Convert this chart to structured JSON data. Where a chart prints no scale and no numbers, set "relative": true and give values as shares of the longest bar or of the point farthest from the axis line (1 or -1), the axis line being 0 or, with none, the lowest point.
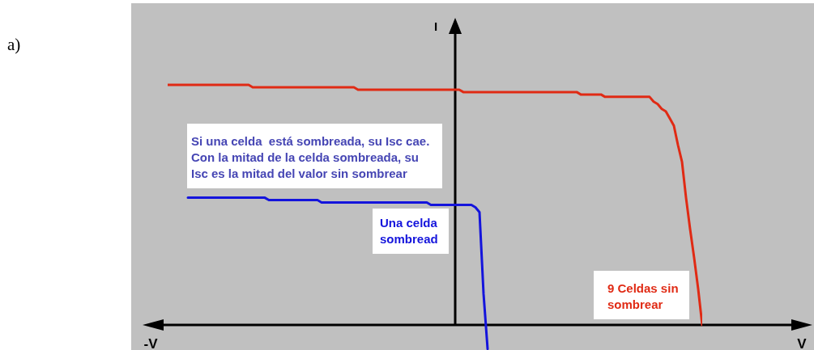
{
  "chart_data": {
    "type": "line",
    "relative": true,
    "ylabel": "I",
    "marker": "none",
    "line_style": "solid",
    "annotations": [
      "a)",
      "Si una celda  está sombreada, su Isc cae. Con la mitad de la celda sombreada, su Isc es la mitad del valor sin sombrear",
      "-V",
      "V"
    ],
    "categories": [
      null,
      null,
      null,
      null,
      null,
      null,
      null,
      null,
      null,
      null,
      null,
      null,
      null,
      null,
      null,
      null,
      null,
      null,
      null,
      null,
      null,
      null,
      null,
      null,
      null,
      null,
      null,
      null,
      null,
      null,
      null,
      null,
      null,
      null,
      null,
      null,
      null,
      null,
      null,
      null,
      null,
      null,
      null,
      null,
      null,
      null,
      null,
      null,
      null,
      null,
      null,
      null,
      null,
      null,
      null,
      null,
      null,
      null,
      null,
      null,
      null,
      null,
      null,
      null,
      null,
      null,
      null,
      null,
      null,
      null,
      null,
      null,
      null,
      null,
      null,
      null,
      null,
      null,
      null,
      null,
      null,
      null,
      null,
      null,
      null,
      null,
      null,
      null,
      null,
      null,
      null,
      null,
      null,
      null,
      null,
      null,
      null,
      null,
      null,
      null,
      null,
      null,
      null,
      null,
      null,
      null,
      null,
      null,
      null,
      null,
      null,
      null,
      null,
      null,
      null,
      null,
      null,
      null,
      null,
      null,
      null,
      null,
      null,
      null,
      null,
      null,
      null,
      null,
      null,
      null,
      null,
      null,
      null
    ],
    "series": [
      {
        "name": "9 Celdas sin sombrear",
        "color": "#e02a14",
        "values": [
          1,
          1,
          1,
          1,
          1,
          1,
          1,
          1,
          1,
          1,
          1,
          1,
          1,
          1,
          1,
          1,
          1,
          1,
          1,
          1,
          1,
          0.99,
          0.99,
          0.99,
          0.99,
          0.99,
          0.99,
          0.99,
          0.99,
          0.99,
          0.99,
          0.99,
          0.99,
          0.99,
          0.99,
          0.99,
          0.99,
          0.99,
          0.99,
          0.99,
          0.99,
          0.99,
          0.99,
          0.99,
          0.99,
          0.99,
          0.99,
          0.98,
          0.98,
          0.98,
          0.98,
          0.98,
          0.98,
          0.98,
          0.98,
          0.98,
          0.98,
          0.98,
          0.98,
          0.98,
          0.98,
          0.98,
          0.98,
          0.98,
          0.98,
          0.98,
          0.98,
          0.98,
          0.98,
          0.98,
          0.98,
          0.98,
          0.98,
          0.97,
          0.97,
          0.97,
          0.97,
          0.97,
          0.97,
          0.97,
          0.97,
          0.97,
          0.97,
          0.97,
          0.97,
          0.97,
          0.97,
          0.97,
          0.97,
          0.97,
          0.97,
          0.97,
          0.97,
          0.97,
          0.97,
          0.97,
          0.97,
          0.97,
          0.97,
          0.97,
          0.97,
          0.97,
          0.96,
          0.96,
          0.96,
          0.96,
          0.96,
          0.96,
          0.95,
          0.95,
          0.95,
          0.95,
          0.95,
          0.95,
          0.95,
          0.95,
          0.95,
          0.95,
          0.95,
          0.95,
          0.93,
          0.92,
          0.9,
          0.89,
          0.86,
          0.83,
          0.75,
          0.68,
          0.53,
          0.4,
          0.28,
          0.15,
          0
        ]
      },
      {
        "name": "Una celda sombread",
        "color": "#1414dc",
        "values": [
          null,
          null,
          null,
          null,
          null,
          0.53,
          0.53,
          0.53,
          0.53,
          0.53,
          0.53,
          0.53,
          0.53,
          0.53,
          0.53,
          0.53,
          0.53,
          0.53,
          0.53,
          0.53,
          0.53,
          0.53,
          0.53,
          0.53,
          0.53,
          0.52,
          0.52,
          0.52,
          0.52,
          0.52,
          0.52,
          0.52,
          0.52,
          0.52,
          0.52,
          0.52,
          0.52,
          0.52,
          0.51,
          0.51,
          0.51,
          0.51,
          0.51,
          0.51,
          0.51,
          0.51,
          0.51,
          0.51,
          0.51,
          0.51,
          0.51,
          0.51,
          0.51,
          0.51,
          0.51,
          0.51,
          0.51,
          0.51,
          0.51,
          0.51,
          0.51,
          0.51,
          0.51,
          0.51,
          0.51,
          0.5,
          0.5,
          0.5,
          0.5,
          0.5,
          0.5,
          0.5,
          0.5,
          0.5,
          0.5,
          0.5,
          0.49,
          0.47,
          0.13,
          -0.1,
          null,
          null,
          null,
          null,
          null,
          null,
          null,
          null,
          null,
          null,
          null,
          null,
          null,
          null,
          null,
          null,
          null,
          null,
          null,
          null,
          null,
          null,
          null,
          null,
          null,
          null,
          null,
          null,
          null,
          null,
          null,
          null,
          null,
          null,
          null,
          null,
          null,
          null,
          null,
          null,
          null,
          null,
          null,
          null,
          null,
          null,
          null,
          null,
          null,
          null,
          null,
          null,
          null
        ]
      }
    ]
  }
}
